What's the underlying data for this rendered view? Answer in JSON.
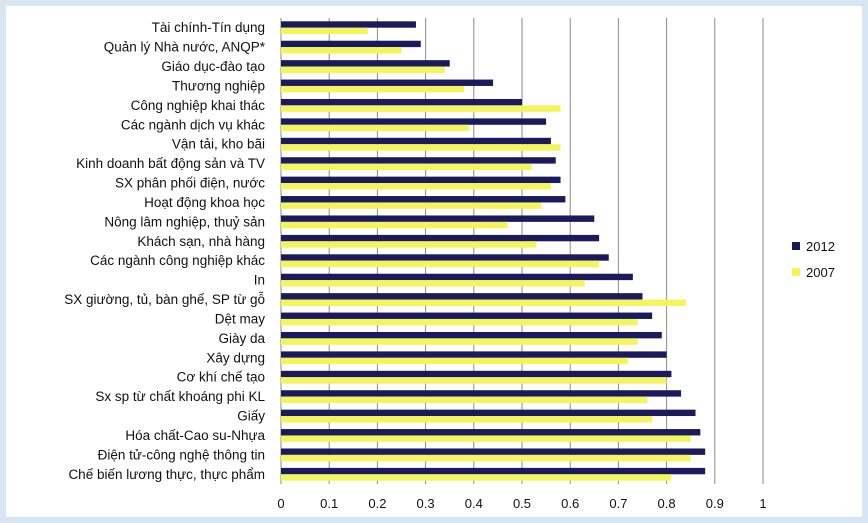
{
  "chart_data": {
    "type": "bar",
    "orientation": "horizontal",
    "title": "",
    "xlabel": "",
    "ylabel": "",
    "xlim": [
      0,
      1
    ],
    "xticks": [
      "0",
      "0.1",
      "0.2",
      "0.3",
      "0.4",
      "0.5",
      "0.6",
      "0.7",
      "0.8",
      "0.9",
      "1"
    ],
    "grid": true,
    "legend_position": "right",
    "categories": [
      "Tài chính-Tín dụng",
      "Quản lý Nhà nước, ANQP*",
      "Giáo dục-đào tạo",
      "Thương nghiệp",
      "Công nghiệp khai thác",
      "Các ngành dịch vụ khác",
      "Vận tải, kho bãi",
      "Kinh doanh bất động sản và TV",
      "SX phân phối điện, nước",
      "Hoạt động khoa học",
      "Nông lâm nghiệp, thuỷ sản",
      "Khách sạn, nhà hàng",
      "Các ngành công nghiệp khác",
      "In",
      "SX giường, tủ, bàn ghế, SP từ gỗ",
      "Dệt may",
      "Giày da",
      "Xây dựng",
      "Cơ khí chế tạo",
      "Sx sp từ chất khoáng phi KL",
      "Giấy",
      "Hóa chất-Cao su-Nhựa",
      "Điện tử-công nghệ thông tin",
      "Chế biến lương thực, thực phẩm"
    ],
    "series": [
      {
        "name": "2012",
        "color": "#1b1a5c",
        "values": [
          0.28,
          0.29,
          0.35,
          0.44,
          0.5,
          0.55,
          0.56,
          0.57,
          0.58,
          0.59,
          0.65,
          0.66,
          0.68,
          0.73,
          0.75,
          0.77,
          0.79,
          0.8,
          0.81,
          0.83,
          0.86,
          0.87,
          0.88,
          0.88
        ]
      },
      {
        "name": "2007",
        "color": "#f4f45c",
        "values": [
          0.18,
          0.25,
          0.34,
          0.38,
          0.58,
          0.39,
          0.58,
          0.52,
          0.56,
          0.54,
          0.47,
          0.53,
          0.66,
          0.63,
          0.84,
          0.74,
          0.74,
          0.72,
          0.8,
          0.76,
          0.77,
          0.85,
          0.85,
          0.81
        ]
      }
    ]
  }
}
